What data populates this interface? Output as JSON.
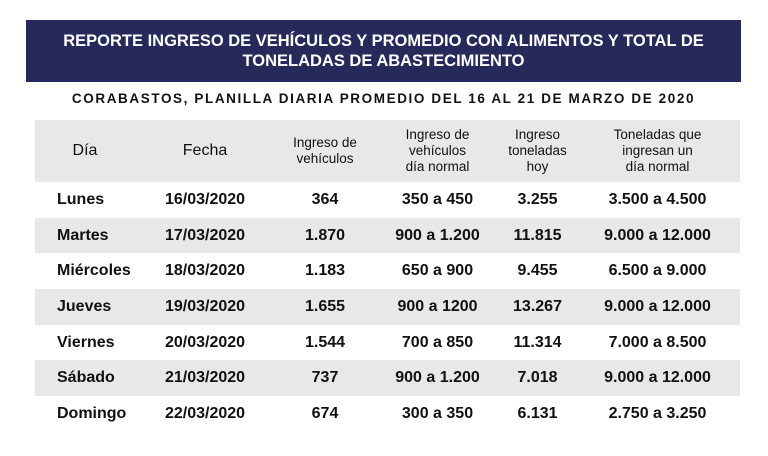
{
  "title": {
    "line1": "REPORTE INGRESO DE VEHÍCULOS Y PROMEDIO CON ALIMENTOS Y TOTAL DE",
    "line2": "TONELADAS DE ABASTECIMIENTO"
  },
  "subtitle": "CORABASTOS, PLANILLA DIARIA PROMEDIO DEL 16 AL 21 DE MARZO DE 2020",
  "table": {
    "headers": [
      [
        "Día"
      ],
      [
        "Fecha"
      ],
      [
        "Ingreso de",
        "vehículos"
      ],
      [
        "Ingreso de",
        "vehículos",
        "día normal"
      ],
      [
        "Ingreso",
        "toneladas",
        "hoy"
      ],
      [
        "Toneladas que",
        "ingresan un",
        "día normal"
      ]
    ],
    "rows": [
      [
        "Lunes",
        "16/03/2020",
        "364",
        "350 a 450",
        "3.255",
        "3.500 a 4.500"
      ],
      [
        "Martes",
        "17/03/2020",
        "1.870",
        "900 a 1.200",
        "11.815",
        "9.000 a 12.000"
      ],
      [
        "Miércoles",
        "18/03/2020",
        "1.183",
        "650 a 900",
        "9.455",
        "6.500 a 9.000"
      ],
      [
        "Jueves",
        "19/03/2020",
        "1.655",
        "900 a 1200",
        "13.267",
        "9.000 a 12.000"
      ],
      [
        "Viernes",
        "20/03/2020",
        "1.544",
        "700 a 850",
        "11.314",
        "7.000 a 8.500"
      ],
      [
        "Sábado",
        "21/03/2020",
        "737",
        "900 a 1.200",
        "7.018",
        "9.000 a 12.000"
      ],
      [
        "Domingo",
        "22/03/2020",
        "674",
        "300 a 350",
        "6.131",
        "2.750 a 3.250"
      ]
    ]
  },
  "colors": {
    "title_bg": "#262a5a",
    "row_alt": "#e8e8e8"
  }
}
